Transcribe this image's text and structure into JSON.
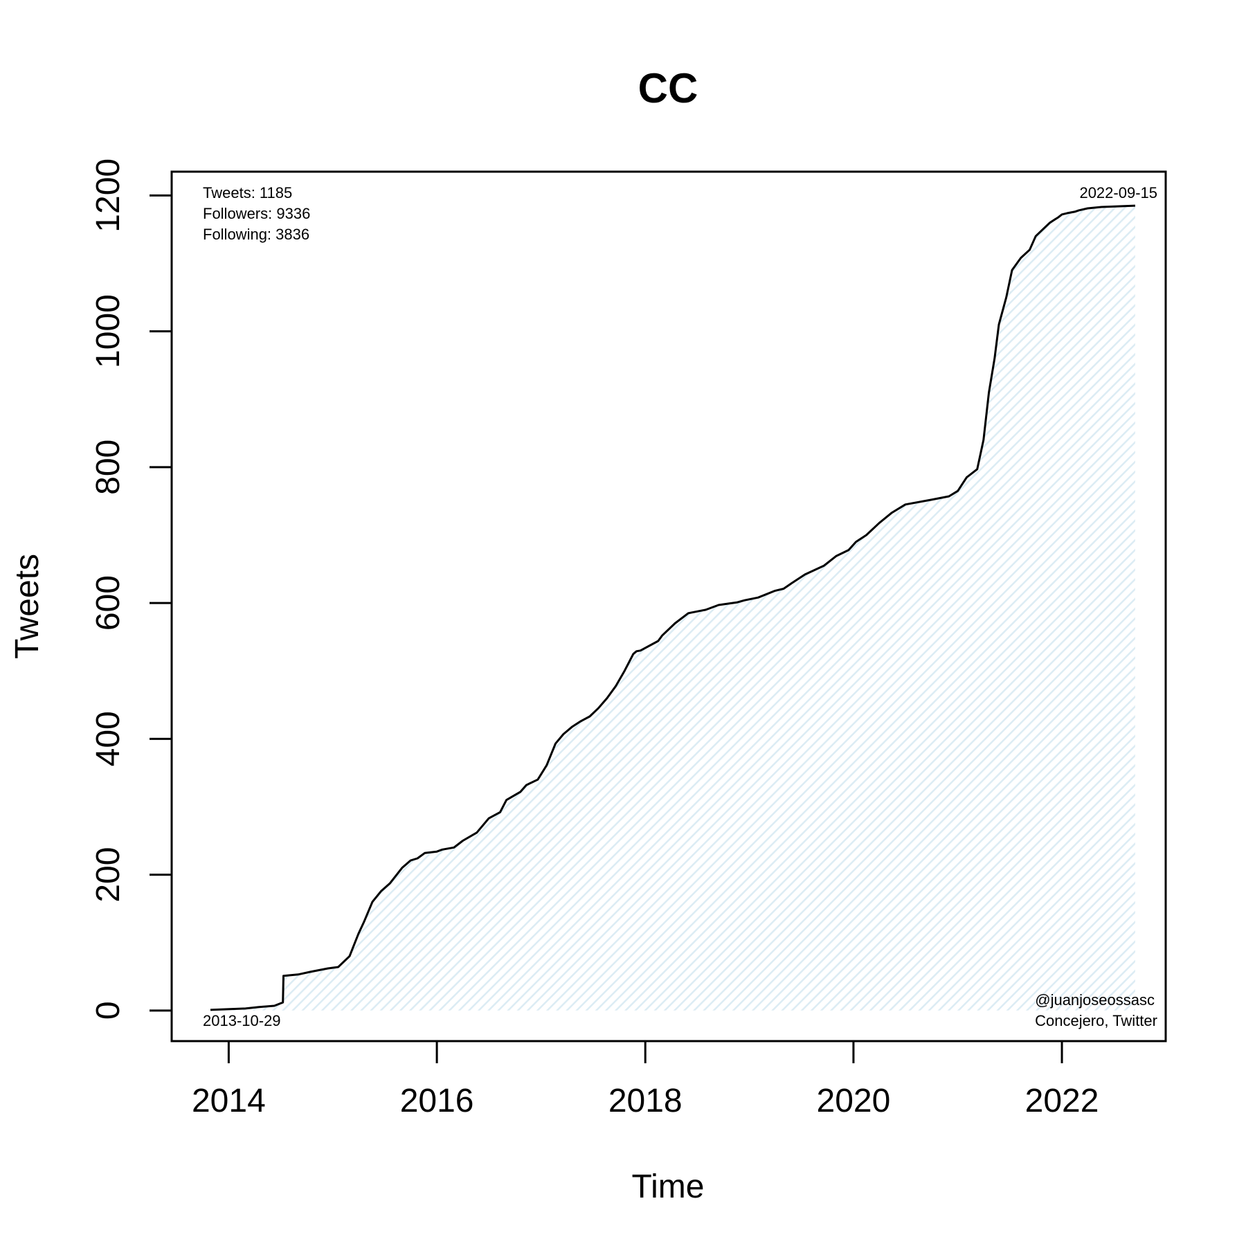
{
  "chart_data": {
    "type": "area",
    "title": "CC",
    "xlabel": "Time",
    "ylabel": "Tweets",
    "x_ticks": [
      "2014",
      "2016",
      "2018",
      "2020",
      "2022"
    ],
    "y_ticks": [
      "0",
      "200",
      "400",
      "600",
      "800",
      "1000",
      "1200"
    ],
    "xlim": [
      "2013-06-15",
      "2022-12-31"
    ],
    "ylim": [
      -45,
      1235
    ],
    "grid": false,
    "fill_color": "#dcecf4",
    "line_color": "#000000",
    "stats": {
      "tweets": "Tweets: 1185",
      "followers": "Followers: 9336",
      "following": "Following: 3836"
    },
    "start_label": "2013-10-29",
    "end_label": "2022-09-15",
    "credit_handle": "@juanjoseossasc",
    "credit_role": "Concejero, Twitter",
    "series": [
      {
        "x": [
          "2013-10-29",
          "2014-03-01",
          "2014-04-15",
          "2014-06-10",
          "2014-07-10",
          "2014-07-12",
          "2014-09-01",
          "2014-10-15",
          "2014-12-15",
          "2015-01-20",
          "2015-03-01",
          "2015-04-01",
          "2015-04-20",
          "2015-05-20",
          "2015-06-20",
          "2015-07-20",
          "2015-09-01",
          "2015-10-01",
          "2015-10-25",
          "2015-11-20",
          "2016-01-01",
          "2016-01-20",
          "2016-03-01",
          "2016-04-01",
          "2016-05-20",
          "2016-07-01",
          "2016-08-10",
          "2016-09-01",
          "2016-10-20",
          "2016-11-10",
          "2016-12-20",
          "2017-01-20",
          "2017-02-20",
          "2017-03-20",
          "2017-04-20",
          "2017-05-20",
          "2017-06-20",
          "2017-07-20",
          "2017-08-20",
          "2017-09-20",
          "2017-10-20",
          "2017-11-20",
          "2017-12-01",
          "2017-12-15",
          "2018-02-15",
          "2018-03-01",
          "2018-04-15",
          "2018-06-01",
          "2018-08-01",
          "2018-09-15",
          "2018-11-20",
          "2018-12-15",
          "2019-02-01",
          "2019-04-01",
          "2019-05-01",
          "2019-06-01",
          "2019-07-15",
          "2019-09-20",
          "2019-11-01",
          "2019-12-15",
          "2020-01-10",
          "2020-02-15",
          "2020-04-01",
          "2020-05-15",
          "2020-07-01",
          "2020-10-01",
          "2020-12-01",
          "2021-01-01",
          "2021-02-01",
          "2021-03-10",
          "2021-04-01",
          "2021-04-20",
          "2021-05-10",
          "2021-05-25",
          "2021-06-20",
          "2021-07-10",
          "2021-08-10",
          "2021-09-10",
          "2021-10-01",
          "2021-11-20",
          "2021-12-20",
          "2022-01-01",
          "2022-01-20",
          "2022-02-15",
          "2022-03-01",
          "2022-04-01",
          "2022-05-20",
          "2022-09-15"
        ],
        "y": [
          1,
          3,
          5,
          7,
          12,
          51,
          53,
          57,
          62,
          64,
          80,
          113,
          130,
          160,
          176,
          187,
          210,
          221,
          224,
          232,
          234,
          237,
          240,
          250,
          262,
          283,
          292,
          310,
          322,
          332,
          340,
          361,
          393,
          407,
          418,
          426,
          433,
          445,
          460,
          478,
          500,
          525,
          529,
          530,
          544,
          552,
          570,
          585,
          590,
          597,
          601,
          604,
          608,
          618,
          621,
          630,
          642,
          655,
          669,
          678,
          690,
          700,
          718,
          733,
          745,
          752,
          757,
          765,
          785,
          797,
          840,
          910,
          960,
          1010,
          1050,
          1090,
          1108,
          1120,
          1140,
          1160,
          1168,
          1172,
          1174,
          1176,
          1178,
          1181,
          1183,
          1185
        ]
      }
    ]
  }
}
